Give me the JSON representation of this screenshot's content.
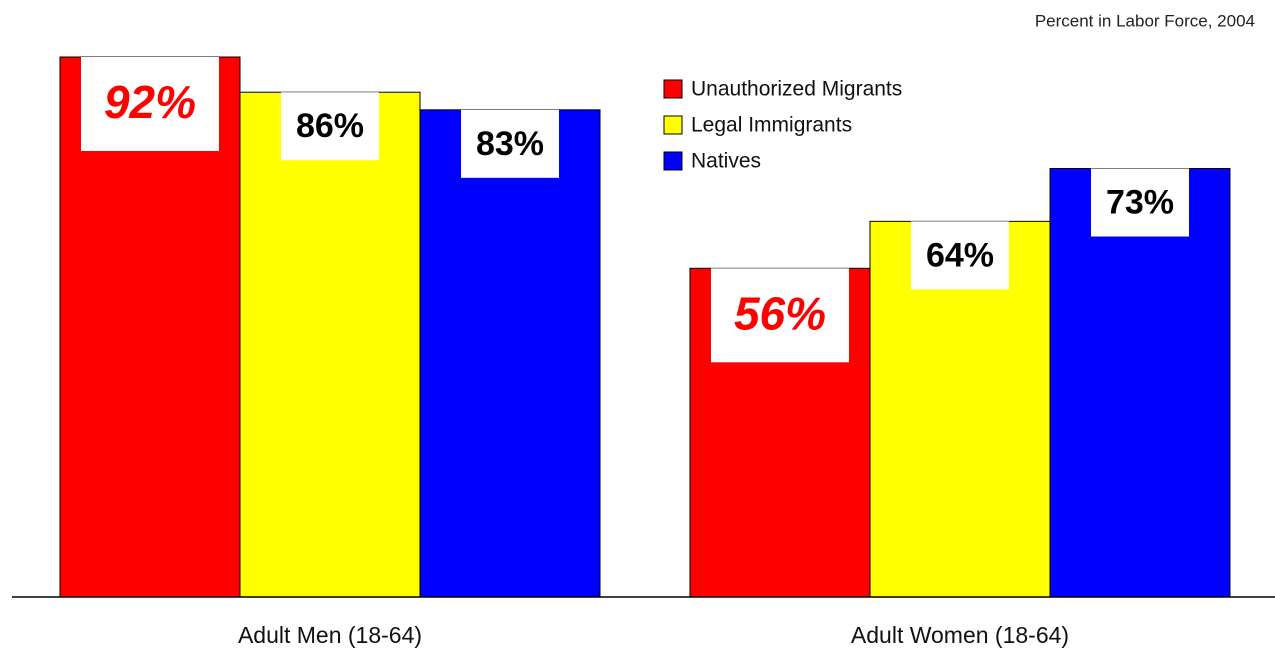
{
  "chart_data": {
    "type": "bar",
    "title": "Percent in Labor Force, 2004",
    "categories": [
      "Adult Men (18-64)",
      "Adult Women (18-64)"
    ],
    "series": [
      {
        "name": "Unauthorized Migrants",
        "color": "#ff0000",
        "values": [
          92,
          56
        ],
        "value_labels": [
          "92%",
          "56%"
        ]
      },
      {
        "name": "Legal Immigrants",
        "color": "#ffff00",
        "values": [
          86,
          64
        ],
        "value_labels": [
          "86%",
          "64%"
        ]
      },
      {
        "name": "Natives",
        "color": "#0000ff",
        "values": [
          83,
          73
        ],
        "value_labels": [
          "83%",
          "73%"
        ]
      }
    ]
  }
}
